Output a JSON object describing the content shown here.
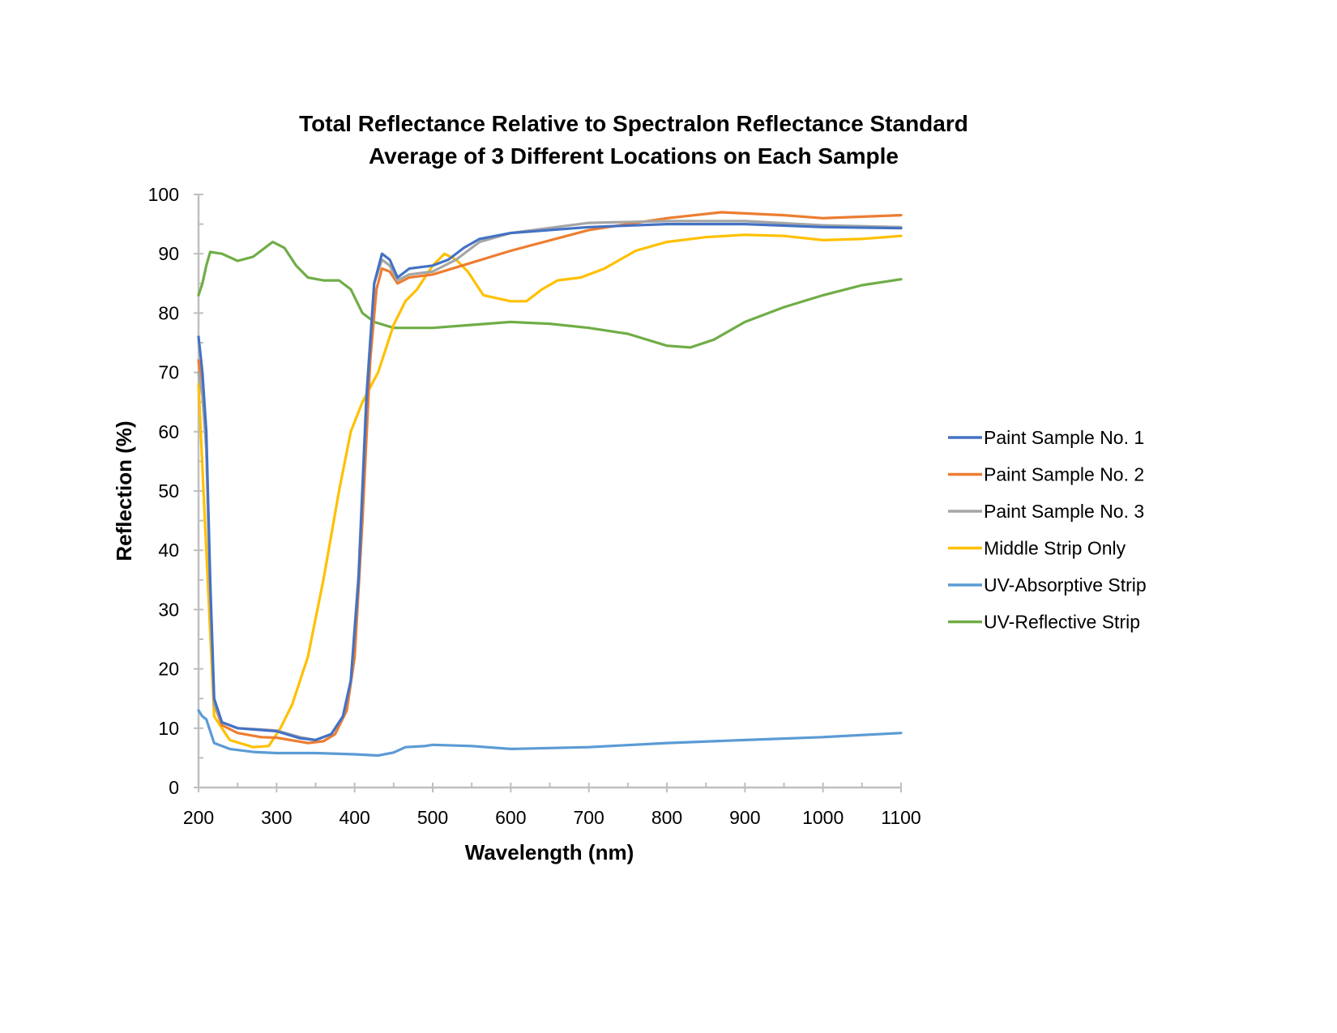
{
  "chart_data": {
    "type": "line",
    "title": [
      "Total Reflectance Relative to Spectralon Reflectance Standard",
      "Average of 3 Different Locations on Each Sample"
    ],
    "xlabel": "Wavelength (nm)",
    "ylabel": "Reflection (%)",
    "xlim": [
      200,
      1100
    ],
    "ylim": [
      0,
      100
    ],
    "xticks": [
      200,
      300,
      400,
      500,
      600,
      700,
      800,
      900,
      1000,
      1100
    ],
    "yticks": [
      0,
      10,
      20,
      30,
      40,
      50,
      60,
      70,
      80,
      90,
      100
    ],
    "grid": false,
    "legend": "right",
    "series": [
      {
        "name": "Paint Sample No. 1",
        "color": "#4472C4",
        "x": [
          200,
          205,
          210,
          215,
          220,
          230,
          250,
          280,
          300,
          330,
          350,
          370,
          385,
          395,
          405,
          415,
          425,
          435,
          445,
          455,
          470,
          500,
          520,
          540,
          560,
          600,
          700,
          800,
          900,
          1000,
          1100
        ],
        "y": [
          76,
          70,
          60,
          35,
          15,
          11,
          10,
          9.7,
          9.5,
          8.3,
          8,
          9,
          12,
          18,
          35,
          65,
          85,
          90,
          89,
          86,
          87.5,
          88,
          89,
          91,
          92.5,
          93.5,
          94.5,
          95,
          95,
          94.5,
          94.3
        ]
      },
      {
        "name": "Paint Sample No. 2",
        "color": "#ED7D31",
        "x": [
          200,
          205,
          210,
          215,
          220,
          230,
          250,
          280,
          300,
          340,
          360,
          375,
          390,
          400,
          410,
          420,
          428,
          435,
          445,
          455,
          470,
          500,
          550,
          600,
          700,
          800,
          870,
          950,
          1000,
          1100
        ],
        "y": [
          72,
          67,
          58,
          33,
          14,
          10.5,
          9.2,
          8.5,
          8.4,
          7.5,
          7.8,
          9,
          13,
          22,
          45,
          72,
          84,
          87.5,
          87,
          85,
          86,
          86.5,
          88.5,
          90.5,
          94,
          96,
          97,
          96.5,
          96,
          96.5
        ]
      },
      {
        "name": "Paint Sample No. 3",
        "color": "#A5A5A5",
        "x": [
          200,
          205,
          210,
          215,
          220,
          230,
          250,
          280,
          300,
          330,
          350,
          370,
          385,
          395,
          405,
          415,
          425,
          435,
          445,
          455,
          470,
          500,
          530,
          560,
          600,
          700,
          800,
          900,
          1000,
          1100
        ],
        "y": [
          70,
          66,
          57,
          33,
          14,
          11,
          10,
          9.8,
          9.6,
          8.5,
          8,
          9,
          12,
          18,
          36,
          66,
          85,
          89,
          88,
          85.5,
          86.5,
          87,
          89,
          92,
          93.5,
          95.2,
          95.5,
          95.5,
          94.8,
          94.5
        ]
      },
      {
        "name": "Middle Strip Only",
        "color": "#FFC000",
        "x": [
          200,
          210,
          220,
          240,
          270,
          290,
          305,
          320,
          340,
          360,
          380,
          395,
          410,
          430,
          450,
          465,
          480,
          500,
          515,
          530,
          545,
          565,
          600,
          620,
          640,
          660,
          690,
          720,
          760,
          800,
          850,
          900,
          950,
          1000,
          1050,
          1100
        ],
        "y": [
          68,
          40,
          12,
          8,
          6.8,
          7,
          10,
          14,
          22,
          35,
          50,
          60,
          65,
          70,
          78,
          82,
          84,
          88,
          90,
          89,
          87,
          83,
          82,
          82,
          84,
          85.5,
          86,
          87.5,
          90.5,
          92,
          92.8,
          93.2,
          93,
          92.3,
          92.5,
          93
        ]
      },
      {
        "name": "UV-Absorptive Strip",
        "color": "#5B9BD5",
        "x": [
          200,
          205,
          210,
          220,
          240,
          270,
          300,
          350,
          400,
          430,
          450,
          465,
          490,
          500,
          550,
          600,
          700,
          800,
          900,
          1000,
          1100
        ],
        "y": [
          13,
          12,
          11.5,
          7.5,
          6.5,
          6,
          5.8,
          5.8,
          5.6,
          5.4,
          5.9,
          6.8,
          7,
          7.2,
          7,
          6.5,
          6.8,
          7.5,
          8,
          8.5,
          9.2
        ]
      },
      {
        "name": "UV-Reflective Strip",
        "color": "#70AD47",
        "x": [
          200,
          205,
          210,
          215,
          230,
          250,
          270,
          295,
          310,
          325,
          340,
          360,
          380,
          395,
          410,
          425,
          450,
          500,
          550,
          600,
          650,
          700,
          750,
          800,
          830,
          860,
          900,
          950,
          1000,
          1050,
          1100
        ],
        "y": [
          83,
          85,
          88,
          90.3,
          90,
          88.8,
          89.5,
          92,
          91,
          88,
          86,
          85.5,
          85.5,
          84,
          80,
          78.5,
          77.5,
          77.5,
          78,
          78.5,
          78.2,
          77.5,
          76.5,
          74.5,
          74.2,
          75.5,
          78.5,
          81,
          83,
          84.7,
          85.7
        ]
      }
    ]
  }
}
